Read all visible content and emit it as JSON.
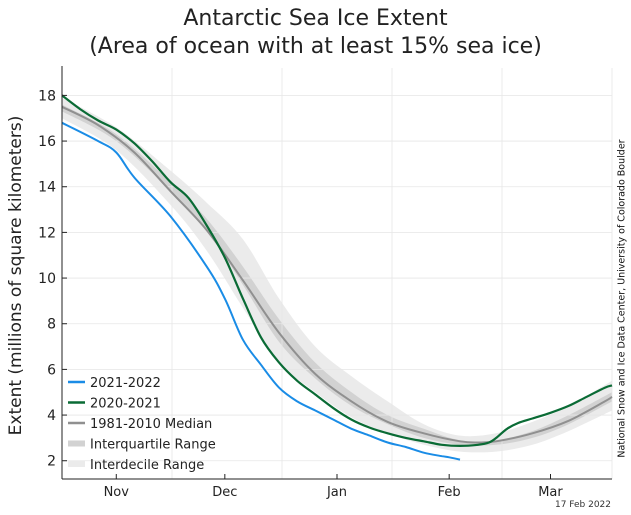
{
  "chart_data": {
    "type": "line",
    "title": "Antarctic Sea Ice Extent",
    "subtitle": "(Area of ocean with at least 15% sea ice)",
    "xlabel": "",
    "ylabel": "Extent (millions of square kilometers)",
    "ylim": [
      1.2,
      19.2
    ],
    "yticks": [
      2,
      4,
      6,
      8,
      10,
      12,
      14,
      16,
      18
    ],
    "x_unit": "day (0 = 21 Oct)",
    "xlim": [
      0,
      152
    ],
    "x_tick_labels": [
      {
        "label": "Nov",
        "day": 15
      },
      {
        "label": "Dec",
        "day": 45
      },
      {
        "label": "Jan",
        "day": 76
      },
      {
        "label": "Feb",
        "day": 107
      },
      {
        "label": "Mar",
        "day": 135
      }
    ],
    "grid": true,
    "legend_position": "bottom-left",
    "interdecile_range": {
      "name": "Interdecile Range",
      "color": "#ebebeb",
      "x": [
        0,
        15,
        30,
        40,
        50,
        60,
        70,
        80,
        90,
        100,
        110,
        120,
        130,
        140,
        152
      ],
      "lower": [
        17.0,
        15.6,
        13.2,
        11.2,
        8.7,
        6.3,
        5.0,
        3.9,
        3.2,
        2.7,
        2.4,
        2.4,
        2.7,
        3.3,
        4.2
      ],
      "upper": [
        17.9,
        16.6,
        14.7,
        13.3,
        11.7,
        9.1,
        7.0,
        5.7,
        4.6,
        3.6,
        3.1,
        3.2,
        3.7,
        4.4,
        5.5
      ]
    },
    "interquartile_range": {
      "name": "Interquartile Range",
      "color": "#d2d2d2",
      "x": [
        0,
        15,
        30,
        40,
        50,
        60,
        70,
        80,
        90,
        100,
        110,
        120,
        130,
        140,
        152
      ],
      "lower": [
        17.3,
        16.0,
        13.8,
        12.1,
        9.7,
        7.2,
        5.6,
        4.4,
        3.6,
        3.0,
        2.7,
        2.7,
        3.0,
        3.6,
        4.6
      ],
      "upper": [
        17.6,
        16.3,
        14.2,
        12.6,
        10.5,
        8.2,
        6.3,
        5.0,
        4.0,
        3.4,
        2.9,
        2.9,
        3.3,
        4.0,
        5.0
      ]
    },
    "series": [
      {
        "name": "1981-2010 Median",
        "color": "#909090",
        "x": [
          0,
          10,
          20,
          30,
          40,
          50,
          60,
          70,
          80,
          90,
          100,
          110,
          115,
          120,
          130,
          140,
          150,
          152
        ],
        "values": [
          17.5,
          16.7,
          15.5,
          13.8,
          12.1,
          9.9,
          7.6,
          5.8,
          4.6,
          3.7,
          3.2,
          2.85,
          2.8,
          2.85,
          3.2,
          3.75,
          4.6,
          4.8
        ]
      },
      {
        "name": "2021-2022",
        "color": "#1a8ce6",
        "x": [
          0,
          10,
          15,
          20,
          30,
          40,
          45,
          50,
          55,
          60,
          65,
          70,
          75,
          80,
          85,
          90,
          95,
          100,
          105,
          107,
          110
        ],
        "values": [
          16.8,
          16.0,
          15.5,
          14.4,
          12.7,
          10.5,
          9.1,
          7.3,
          6.2,
          5.2,
          4.6,
          4.2,
          3.8,
          3.4,
          3.1,
          2.8,
          2.6,
          2.35,
          2.2,
          2.15,
          2.05
        ]
      },
      {
        "name": "2020-2021",
        "color": "#0a6b35",
        "x": [
          0,
          5,
          10,
          15,
          20,
          25,
          30,
          35,
          40,
          45,
          50,
          55,
          60,
          65,
          70,
          75,
          80,
          85,
          90,
          95,
          100,
          105,
          110,
          115,
          118,
          120,
          123,
          126,
          130,
          135,
          140,
          145,
          150,
          152
        ],
        "values": [
          18.0,
          17.4,
          16.9,
          16.5,
          15.9,
          15.1,
          14.2,
          13.5,
          12.3,
          10.9,
          9.1,
          7.4,
          6.3,
          5.5,
          4.9,
          4.3,
          3.8,
          3.45,
          3.2,
          3.0,
          2.85,
          2.7,
          2.65,
          2.7,
          2.8,
          3.0,
          3.4,
          3.65,
          3.85,
          4.1,
          4.4,
          4.8,
          5.2,
          5.3
        ]
      }
    ]
  },
  "credit": "National Snow and Ice Data Center, University of Colorado Boulder",
  "date_stamp": "17 Feb 2022"
}
